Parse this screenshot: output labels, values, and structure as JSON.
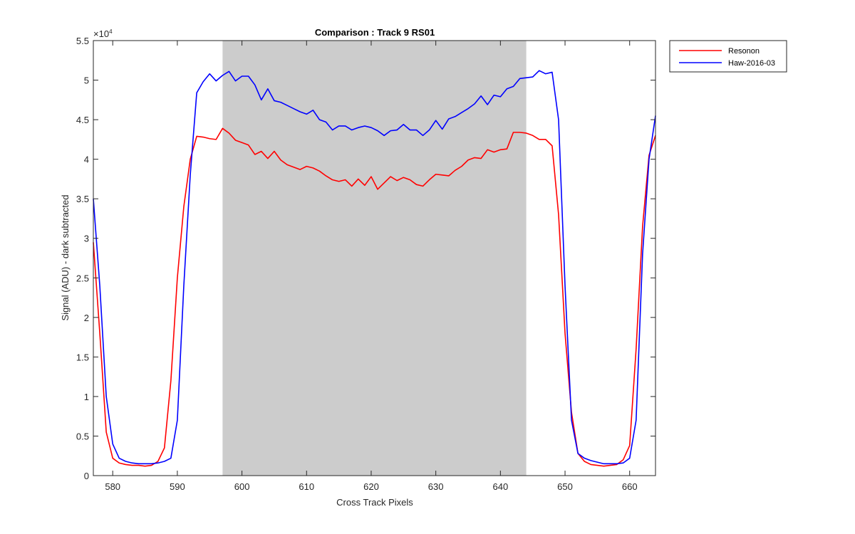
{
  "chart_data": {
    "type": "line",
    "title": "Comparison : Track 9  RS01",
    "xlabel": "Cross Track Pixels",
    "ylabel": "Signal (ADU) - dark subtracted",
    "exponent_label": "×10",
    "exponent_power": "4",
    "xlim": [
      577,
      664
    ],
    "ylim": [
      0,
      5.5
    ],
    "y_scale_factor": 10000,
    "xticks": [
      580,
      590,
      600,
      610,
      620,
      630,
      640,
      650,
      660
    ],
    "yticks": [
      0,
      0.5,
      1,
      1.5,
      2,
      2.5,
      3,
      3.5,
      4,
      4.5,
      5,
      5.5
    ],
    "xtick_labels": [
      "580",
      "590",
      "600",
      "610",
      "620",
      "630",
      "640",
      "650",
      "660"
    ],
    "ytick_labels": [
      "0",
      "0.5",
      "1",
      "1.5",
      "2",
      "2.5",
      "3",
      "3.5",
      "4",
      "4.5",
      "5",
      "5.5"
    ],
    "shaded_region": {
      "x_start": 597,
      "x_end": 644,
      "color": "#cccccc"
    },
    "legend_position": "outside-top-right",
    "grid": false,
    "x": [
      577,
      578,
      579,
      580,
      581,
      582,
      583,
      584,
      585,
      586,
      587,
      588,
      589,
      590,
      591,
      592,
      593,
      594,
      595,
      596,
      597,
      598,
      599,
      600,
      601,
      602,
      603,
      604,
      605,
      606,
      607,
      608,
      609,
      610,
      611,
      612,
      613,
      614,
      615,
      616,
      617,
      618,
      619,
      620,
      621,
      622,
      623,
      624,
      625,
      626,
      627,
      628,
      629,
      630,
      631,
      632,
      633,
      634,
      635,
      636,
      637,
      638,
      639,
      640,
      641,
      642,
      643,
      644,
      645,
      646,
      647,
      648,
      649,
      650,
      651,
      652,
      653,
      654,
      655,
      656,
      657,
      658,
      659,
      660,
      661,
      662,
      663,
      664
    ],
    "series": [
      {
        "name": "Resonon",
        "color": "#ff0000",
        "values": [
          2.95,
          1.8,
          0.55,
          0.22,
          0.16,
          0.14,
          0.13,
          0.13,
          0.12,
          0.13,
          0.18,
          0.35,
          1.2,
          2.5,
          3.4,
          4.0,
          4.29,
          4.28,
          4.26,
          4.25,
          4.39,
          4.33,
          4.24,
          4.21,
          4.18,
          4.06,
          4.1,
          4.01,
          4.1,
          3.99,
          3.93,
          3.9,
          3.87,
          3.91,
          3.89,
          3.85,
          3.79,
          3.74,
          3.72,
          3.74,
          3.66,
          3.75,
          3.67,
          3.78,
          3.62,
          3.7,
          3.78,
          3.73,
          3.77,
          3.74,
          3.68,
          3.66,
          3.74,
          3.81,
          3.8,
          3.79,
          3.86,
          3.91,
          3.99,
          4.02,
          4.01,
          4.12,
          4.09,
          4.12,
          4.13,
          4.34,
          4.34,
          4.33,
          4.3,
          4.25,
          4.25,
          4.17,
          3.3,
          1.8,
          0.8,
          0.28,
          0.18,
          0.14,
          0.13,
          0.12,
          0.13,
          0.14,
          0.2,
          0.38,
          1.6,
          3.15,
          4.05,
          4.3
        ]
      },
      {
        "name": "Haw-2016-03",
        "color": "#0000ff",
        "values": [
          3.5,
          2.4,
          1.0,
          0.4,
          0.22,
          0.18,
          0.16,
          0.15,
          0.15,
          0.15,
          0.16,
          0.18,
          0.22,
          0.7,
          2.4,
          3.8,
          4.84,
          4.98,
          5.08,
          4.99,
          5.06,
          5.11,
          4.99,
          5.05,
          5.05,
          4.94,
          4.75,
          4.89,
          4.74,
          4.72,
          4.68,
          4.64,
          4.6,
          4.57,
          4.62,
          4.5,
          4.47,
          4.37,
          4.42,
          4.42,
          4.37,
          4.4,
          4.42,
          4.4,
          4.36,
          4.3,
          4.36,
          4.37,
          4.44,
          4.37,
          4.37,
          4.3,
          4.37,
          4.49,
          4.38,
          4.51,
          4.54,
          4.59,
          4.64,
          4.7,
          4.8,
          4.69,
          4.81,
          4.79,
          4.89,
          4.92,
          5.02,
          5.03,
          5.04,
          5.12,
          5.08,
          5.1,
          4.5,
          2.4,
          0.7,
          0.28,
          0.22,
          0.19,
          0.17,
          0.15,
          0.15,
          0.15,
          0.16,
          0.22,
          0.7,
          2.8,
          4.0,
          4.55
        ]
      }
    ]
  }
}
